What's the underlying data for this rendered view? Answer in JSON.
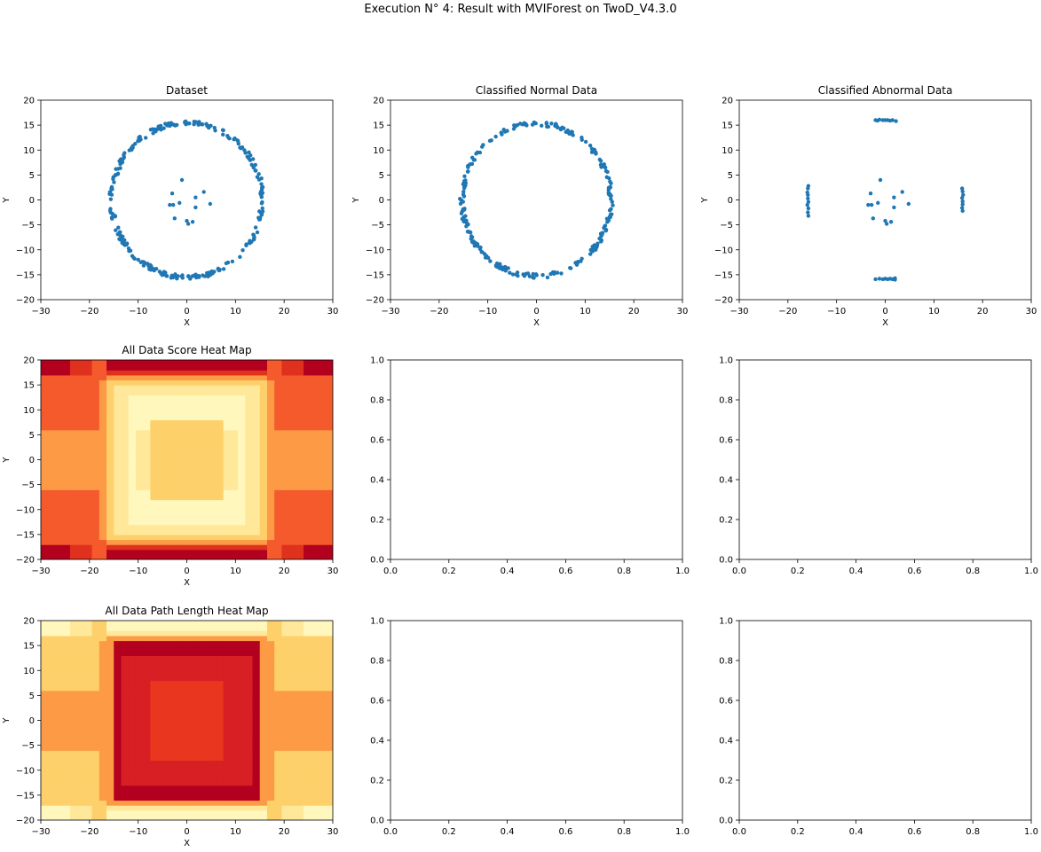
{
  "figure": {
    "title": "Execution N° 4: Result with MVIForest on TwoD_V4.3.0"
  },
  "colors": {
    "points": "#1f77b4",
    "score_levels": [
      "#fff7bc",
      "#ffe89a",
      "#fed06b",
      "#fd9a45",
      "#f45a2c",
      "#e0301e",
      "#b3001f"
    ],
    "path_levels": [
      "#b3001f",
      "#d71f24",
      "#e8361f",
      "#fd9a45",
      "#fed06b",
      "#ffe89a",
      "#fff7bc"
    ]
  },
  "chart_data": [
    {
      "id": "dataset",
      "type": "scatter",
      "title": "Dataset",
      "xlabel": "X",
      "ylabel": "Y",
      "xlim": [
        -30,
        30
      ],
      "ylim": [
        -20,
        20
      ],
      "xticks": [
        -30,
        -20,
        -10,
        0,
        10,
        20,
        30
      ],
      "yticks": [
        -20,
        -15,
        -10,
        -5,
        0,
        5,
        10,
        15,
        20
      ],
      "series": [
        {
          "description": "ring",
          "ring": {
            "radius": 15.5,
            "count": 260
          }
        },
        {
          "description": "inliers",
          "points": [
            [
              -1,
              4
            ],
            [
              -3,
              1.3
            ],
            [
              -3.5,
              -1
            ],
            [
              -2.8,
              -1
            ],
            [
              -2.5,
              -3.7
            ],
            [
              -1.5,
              -0.6
            ],
            [
              0,
              -4.2
            ],
            [
              0.3,
              -4.8
            ],
            [
              1.2,
              -4.4
            ],
            [
              1.8,
              0.5
            ],
            [
              1.8,
              -1.5
            ],
            [
              3.5,
              1.6
            ],
            [
              4.8,
              -0.8
            ]
          ]
        }
      ]
    },
    {
      "id": "normal",
      "type": "scatter",
      "title": "Classified Normal Data",
      "xlabel": "X",
      "ylabel": "Y",
      "xlim": [
        -30,
        30
      ],
      "ylim": [
        -20,
        20
      ],
      "xticks": [
        -30,
        -20,
        -10,
        0,
        10,
        20,
        30
      ],
      "yticks": [
        -20,
        -15,
        -10,
        -5,
        0,
        5,
        10,
        15,
        20
      ],
      "series": [
        {
          "description": "ring minus extreme points",
          "ring": {
            "radius": 15.3,
            "count": 250
          }
        }
      ]
    },
    {
      "id": "abnormal",
      "type": "scatter",
      "title": "Classified Abnormal Data",
      "xlabel": "X",
      "ylabel": "Y",
      "xlim": [
        -30,
        30
      ],
      "ylim": [
        -20,
        20
      ],
      "xticks": [
        -30,
        -20,
        -10,
        0,
        10,
        20,
        30
      ],
      "yticks": [
        -20,
        -15,
        -10,
        -5,
        0,
        5,
        10,
        15,
        20
      ],
      "series": [
        {
          "description": "top",
          "points": [
            [
              -2,
              16
            ],
            [
              -1.6,
              15.9
            ],
            [
              -0.5,
              16
            ],
            [
              0,
              16
            ],
            [
              0.5,
              16
            ],
            [
              1,
              15.9
            ],
            [
              1.5,
              16
            ],
            [
              2.2,
              15.8
            ],
            [
              -1.2,
              16.1
            ]
          ]
        },
        {
          "description": "bottom",
          "points": [
            [
              -2,
              -15.9
            ],
            [
              -1.2,
              -15.8
            ],
            [
              -0.5,
              -15.9
            ],
            [
              0,
              -15.8
            ],
            [
              0.5,
              -15.9
            ],
            [
              1,
              -15.8
            ],
            [
              1.5,
              -15.9
            ],
            [
              2,
              -15.7
            ],
            [
              2,
              -16
            ]
          ]
        },
        {
          "description": "left",
          "points": [
            [
              -15.8,
              2.8
            ],
            [
              -15.9,
              2.3
            ],
            [
              -16,
              1.5
            ],
            [
              -15.9,
              1
            ],
            [
              -15.9,
              0.3
            ],
            [
              -15.8,
              -0.4
            ],
            [
              -16,
              -1
            ],
            [
              -15.8,
              -1.7
            ],
            [
              -15.9,
              -2.5
            ],
            [
              -15.8,
              -3.2
            ]
          ]
        },
        {
          "description": "right",
          "points": [
            [
              15.8,
              2.3
            ],
            [
              15.9,
              1.7
            ],
            [
              16,
              1
            ],
            [
              15.8,
              0.4
            ],
            [
              15.9,
              -0.3
            ],
            [
              15.9,
              -0.9
            ],
            [
              15.8,
              -1.6
            ],
            [
              15.9,
              -2.2
            ]
          ]
        },
        {
          "description": "center",
          "points": [
            [
              -1,
              4
            ],
            [
              -3,
              1.3
            ],
            [
              -3.5,
              -1
            ],
            [
              -2.8,
              -1
            ],
            [
              -2.5,
              -3.7
            ],
            [
              -1.5,
              -0.6
            ],
            [
              0,
              -4.2
            ],
            [
              0.3,
              -4.8
            ],
            [
              1.2,
              -4.4
            ],
            [
              1.8,
              0.5
            ],
            [
              1.8,
              -1.5
            ],
            [
              3.5,
              1.6
            ],
            [
              4.8,
              -0.8
            ]
          ]
        }
      ]
    },
    {
      "id": "score",
      "type": "heatmap",
      "title": "All Data Score Heat Map",
      "xlabel": "X",
      "ylabel": "Y",
      "xlim": [
        -30,
        30
      ],
      "ylim": [
        -20,
        20
      ],
      "xticks": [
        -30,
        -20,
        -10,
        0,
        10,
        20,
        30
      ],
      "yticks": [
        -20,
        -15,
        -10,
        -5,
        0,
        5,
        10,
        15,
        20
      ],
      "colorscale": "score_levels"
    },
    {
      "id": "empty1",
      "type": "empty",
      "xlim": [
        0,
        1
      ],
      "ylim": [
        0,
        1
      ],
      "xticks": [
        0.0,
        0.2,
        0.4,
        0.6,
        0.8,
        1.0
      ],
      "yticks": [
        0.0,
        0.2,
        0.4,
        0.6,
        0.8,
        1.0
      ]
    },
    {
      "id": "empty2",
      "type": "empty",
      "xlim": [
        0,
        1
      ],
      "ylim": [
        0,
        1
      ],
      "xticks": [
        0.0,
        0.2,
        0.4,
        0.6,
        0.8,
        1.0
      ],
      "yticks": [
        0.0,
        0.2,
        0.4,
        0.6,
        0.8,
        1.0
      ]
    },
    {
      "id": "path",
      "type": "heatmap",
      "title": "All Data Path Length Heat Map",
      "xlabel": "X",
      "ylabel": "Y",
      "xlim": [
        -30,
        30
      ],
      "ylim": [
        -20,
        20
      ],
      "xticks": [
        -30,
        -20,
        -10,
        0,
        10,
        20,
        30
      ],
      "yticks": [
        -20,
        -15,
        -10,
        -5,
        0,
        5,
        10,
        15,
        20
      ],
      "colorscale": "path_levels"
    },
    {
      "id": "empty3",
      "type": "empty",
      "xlim": [
        0,
        1
      ],
      "ylim": [
        0,
        1
      ],
      "xticks": [
        0.0,
        0.2,
        0.4,
        0.6,
        0.8,
        1.0
      ],
      "yticks": [
        0.0,
        0.2,
        0.4,
        0.6,
        0.8,
        1.0
      ]
    },
    {
      "id": "empty4",
      "type": "empty",
      "xlim": [
        0,
        1
      ],
      "ylim": [
        0,
        1
      ],
      "xticks": [
        0.0,
        0.2,
        0.4,
        0.6,
        0.8,
        1.0
      ],
      "yticks": [
        0.0,
        0.2,
        0.4,
        0.6,
        0.8,
        1.0
      ]
    }
  ]
}
